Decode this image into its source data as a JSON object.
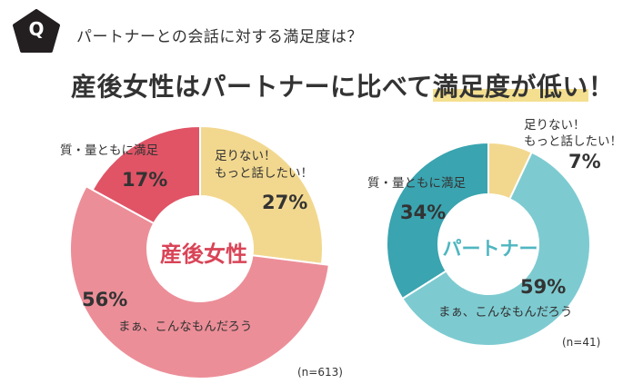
{
  "header": {
    "badge": "Q",
    "question": "パートナーとの会話に対する満足度は？",
    "headline_plain": "産後女性はパートナーに比べて",
    "headline_highlight": "満足度が低い",
    "headline_end": "！"
  },
  "colors": {
    "badge": "#231f20",
    "highlight": "#f3df8f",
    "left_center_text": "#d94457",
    "right_center_text": "#4fb6c1"
  },
  "chart_data": [
    {
      "type": "pie",
      "title": "産後女性",
      "n_label": "(n=613)",
      "slices": [
        {
          "label_line1": "足りない！",
          "label_line2": "もっと話したい！",
          "value": 27,
          "pct_label": "27%",
          "color": "#f2d88f"
        },
        {
          "label_line1": "まぁ、こんなもんだろう",
          "value": 56,
          "pct_label": "56%",
          "color": "#ec8e98"
        },
        {
          "label_line1": "質・量ともに満足",
          "value": 17,
          "pct_label": "17%",
          "color": "#e05466"
        }
      ]
    },
    {
      "type": "pie",
      "title": "パートナー",
      "n_label": "(n=41)",
      "slices": [
        {
          "label_line1": "足りない！",
          "label_line2": "もっと話したい！",
          "value": 7,
          "pct_label": "7%",
          "color": "#f2d88f"
        },
        {
          "label_line1": "まぁ、こんなもんだろう",
          "value": 59,
          "pct_label": "59%",
          "color": "#7dcbd1"
        },
        {
          "label_line1": "質・量ともに満足",
          "value": 34,
          "pct_label": "34%",
          "color": "#3aa4b0"
        }
      ]
    }
  ]
}
